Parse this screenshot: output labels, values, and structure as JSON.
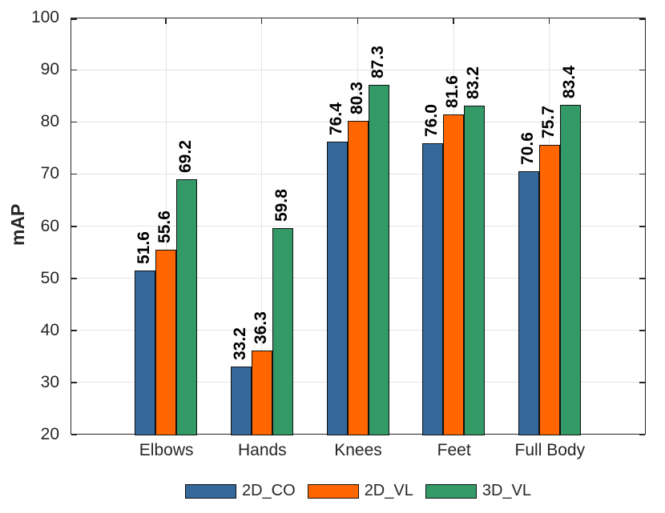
{
  "chart_data": {
    "type": "bar",
    "title": "",
    "xlabel": "",
    "ylabel": "mAP",
    "categories": [
      "Elbows",
      "Hands",
      "Knees",
      "Feet",
      "Full Body"
    ],
    "series": [
      {
        "name": "2D_CO",
        "color": "#35689B",
        "values": [
          51.6,
          33.2,
          76.4,
          76.0,
          70.6
        ]
      },
      {
        "name": "2D_VL",
        "color": "#FF6600",
        "values": [
          55.6,
          36.3,
          80.3,
          81.6,
          75.7
        ]
      },
      {
        "name": "3D_VL",
        "color": "#339966",
        "values": [
          69.2,
          59.8,
          87.3,
          83.2,
          83.4
        ]
      }
    ],
    "ylim": [
      20,
      100
    ],
    "ytick_step": 10,
    "grid": true,
    "legend_position": "bottom",
    "value_label_style": "rotated-90-bold-above-bar"
  },
  "colors": {
    "axis": "#262626",
    "tick_text": "#262626",
    "grid": "#e4e4e4",
    "bar_edge": "#111111",
    "value_label": "#000000",
    "background": "#ffffff"
  }
}
